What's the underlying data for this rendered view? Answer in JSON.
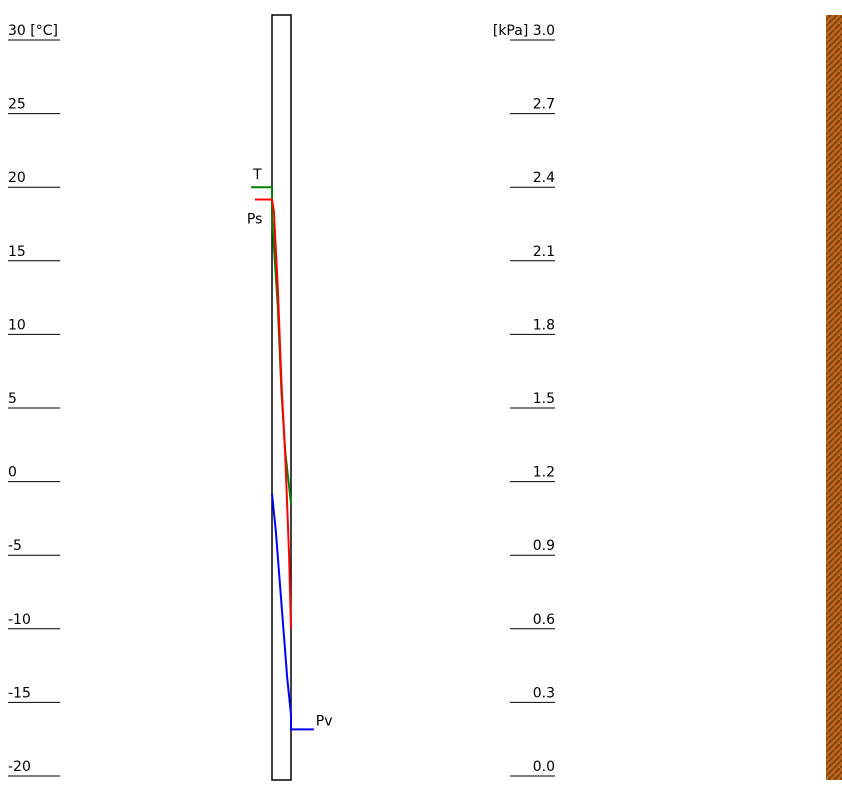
{
  "chart_data": {
    "type": "line",
    "xlim": [
      -12,
      28.8
    ],
    "ylim": [
      -20,
      30
    ],
    "yticks": [
      {
        "value": 30,
        "label": "30  [°C]"
      },
      25,
      20,
      15,
      10,
      5,
      0,
      -5,
      -10,
      -15,
      -20
    ],
    "y2lim": [
      0,
      3
    ],
    "y2ticks": [
      {
        "value": 3,
        "label": "[kPa] 3.0"
      },
      2.7,
      2.4,
      2.1,
      1.8,
      1.5,
      1.2,
      0.9,
      0.6,
      0.3,
      {
        "value": 0,
        "label": "0.0"
      }
    ],
    "series": [
      {
        "name": "T",
        "color": "#008000",
        "x": [
          -1.1,
          0,
          0,
          0.3,
          0.5,
          0.7,
          1.0
        ],
        "values": [
          20,
          20,
          18,
          12,
          6,
          2,
          -1.5
        ]
      },
      {
        "name": "Ps",
        "color": "#ff0000",
        "axis": "y2",
        "x": [
          -0.9,
          0,
          0.1,
          0.3,
          0.5,
          0.7,
          0.9,
          1.0
        ],
        "values": [
          2.35,
          2.35,
          2.3,
          2.0,
          1.6,
          1.3,
          0.9,
          0.6
        ]
      },
      {
        "name": "Pv",
        "color": "#0000ff",
        "axis": "y2",
        "x": [
          0,
          0.2,
          0.4,
          0.6,
          0.8,
          1.0,
          1.0,
          2.2
        ],
        "values": [
          1.15,
          1.0,
          0.8,
          0.6,
          0.4,
          0.25,
          0.19,
          0.19
        ]
      }
    ]
  }
}
